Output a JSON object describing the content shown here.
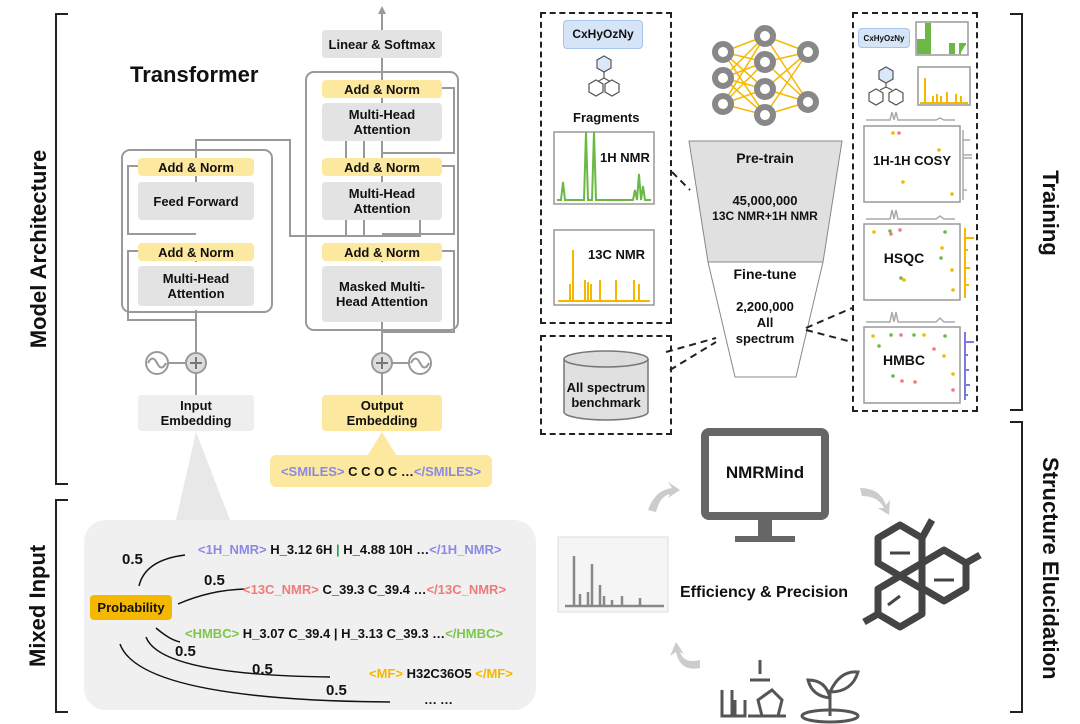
{
  "sections": {
    "model_architecture": "Model Architecture",
    "mixed_input": "Mixed Input",
    "training": "Training",
    "structure_elucidation": "Structure Elucidation"
  },
  "transformer": {
    "title": "Transformer",
    "encoder": {
      "add_norm_1": "Add & Norm",
      "feed_forward": "Feed Forward",
      "add_norm_2": "Add & Norm",
      "mha": "Multi-Head Attention",
      "input_embedding": "Input Embedding"
    },
    "decoder": {
      "linear_softmax": "Linear & Softmax",
      "add_norm_1": "Add & Norm",
      "mha_1": "Multi-Head Attention",
      "add_norm_2": "Add & Norm",
      "mha_2": "Multi-Head Attention",
      "add_norm_3": "Add & Norm",
      "masked_mha": "Masked Multi-Head Attention",
      "output_embedding": "Output Embedding"
    },
    "smiles": {
      "open": "<SMILES>",
      "content": " C C O C …",
      "close": "</SMILES>"
    }
  },
  "mixed_input": {
    "probability": "Probability",
    "weights": [
      "0.5",
      "0.5",
      "0.5",
      "0.5",
      "0.5"
    ],
    "lines": [
      {
        "open": "<1H_NMR>",
        "content_a": " H_3.12 6H ",
        "sep": "|",
        "content_b": " H_4.88 10H …",
        "close": "</1H_NMR>",
        "color": "#8a8ae6"
      },
      {
        "open": "<13C_NMR>",
        "content": " C_39.3 C_39.4 …",
        "close": "</13C_NMR>",
        "color": "#f07a7a"
      },
      {
        "open": "<HMBC>",
        "content": " H_3.07 C_39.4 | H_3.13 C_39.3 …",
        "close": "</HMBC>",
        "color": "#7cc74a"
      },
      {
        "open": "<MF>",
        "content": " H32C36O5 ",
        "close": "</MF>",
        "color": "#f5b800"
      }
    ],
    "ellipsis": "……"
  },
  "training": {
    "formula": "CxHyOzNy",
    "fragments": "Fragments",
    "h_nmr": "1H NMR",
    "c_nmr": "13C NMR",
    "pretrain": {
      "label": "Pre-train",
      "count": "45,000,000",
      "data": "13C NMR+1H NMR"
    },
    "finetune": {
      "label": "Fine-tune",
      "count": "2,200,000",
      "data_1": "All",
      "data_2": "spectrum"
    },
    "benchmark": "All spectrum benchmark",
    "cosy": "1H-1H COSY",
    "hsqc": "HSQC",
    "hmbc": "HMBC"
  },
  "elucidation": {
    "app": "NMRMind",
    "tagline": "Efficiency & Precision"
  },
  "colors": {
    "yellow": "#fde8a0",
    "gold": "#f5b800",
    "green": "#6cb847",
    "purple": "#7a7ae0",
    "gray": "#e3e3e3"
  }
}
